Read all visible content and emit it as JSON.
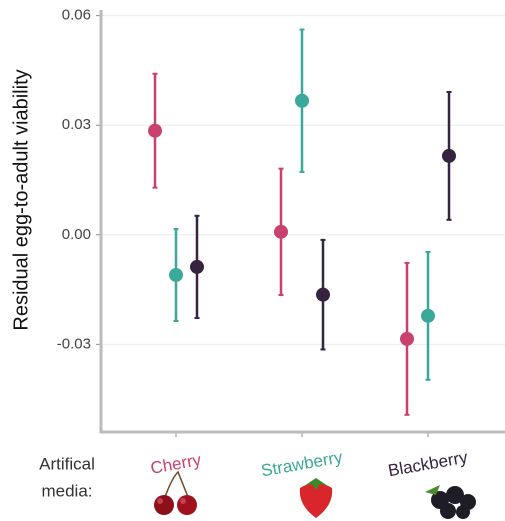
{
  "chart_data": {
    "type": "dot-errorbar",
    "y_label": "Residual egg-to-adult viability",
    "x_label": "Artifical media:",
    "categories": [
      "Cherry",
      "Strawberry",
      "Blackberry"
    ],
    "series": [
      {
        "color": "#c8416f",
        "values": [
          0.0285,
          0.0008,
          -0.0285
        ],
        "errors": [
          0.0156,
          0.0173,
          0.0208
        ]
      },
      {
        "color": "#3aa89a",
        "values": [
          -0.011,
          0.0367,
          -0.0222
        ],
        "errors": [
          0.0126,
          0.0195,
          0.0175
        ]
      },
      {
        "color": "#35233f",
        "values": [
          -0.0088,
          -0.0164,
          0.0216
        ],
        "errors": [
          0.014,
          0.015,
          0.0175
        ]
      }
    ],
    "ylim": [
      -0.054,
      0.061
    ],
    "yticks": [
      0.06,
      0.03,
      {
        "value": 0,
        "label": "0.00"
      },
      -0.03
    ],
    "grid": true
  }
}
